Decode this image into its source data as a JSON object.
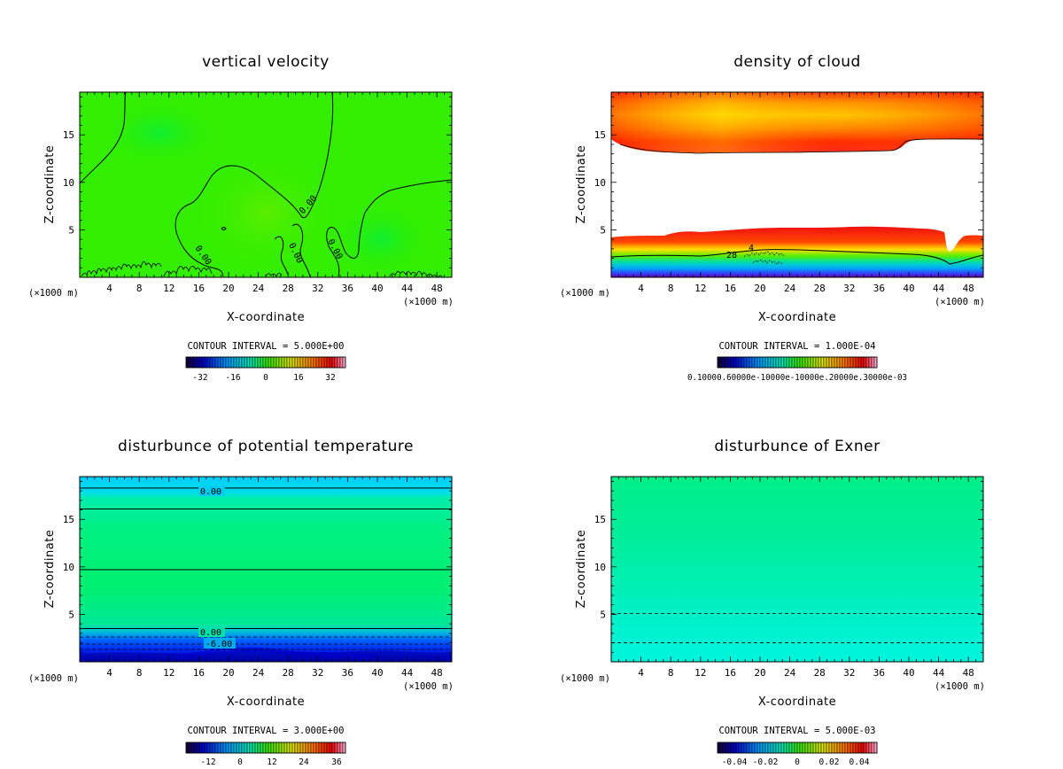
{
  "chart_data": [
    {
      "type": "heatmap",
      "title": "vertical velocity",
      "xlabel": "X-coordinate",
      "ylabel": "Z-coordinate",
      "x_unit_left": "(×1000 m)",
      "x_unit_right": "(×1000 m)",
      "xlim": [
        0,
        50
      ],
      "ylim": [
        0,
        19.5
      ],
      "xticks": [
        4,
        8,
        12,
        16,
        20,
        24,
        28,
        32,
        36,
        40,
        44,
        48
      ],
      "yticks": [
        5,
        10,
        15
      ],
      "contour_interval": "CONTOUR INTERVAL = 5.000E+00",
      "colorbar_ticks": [
        "-32",
        "-16",
        "0",
        "16",
        "32"
      ],
      "colorbar_range": [
        -40,
        40
      ],
      "contour_labels": [
        "0.00",
        "0.00",
        "0.00",
        "0.00"
      ],
      "background_color": "#33ee00"
    },
    {
      "type": "heatmap",
      "title": "density of cloud",
      "xlabel": "X-coordinate",
      "ylabel": "Z-coordinate",
      "x_unit_left": "(×1000 m)",
      "x_unit_right": "(×1000 m)",
      "xlim": [
        0,
        50
      ],
      "ylim": [
        0,
        19.5
      ],
      "xticks": [
        4,
        8,
        12,
        16,
        20,
        24,
        28,
        32,
        36,
        40,
        44,
        48
      ],
      "yticks": [
        5,
        10,
        15
      ],
      "contour_interval": "CONTOUR INTERVAL = 1.000E-04",
      "colorbar_ticks_text": "0.10000.60000e-10000e-10000e.20000e.30000e-03",
      "contour_labels": [
        "28",
        "4"
      ]
    },
    {
      "type": "heatmap",
      "title": "disturbunce of potential temperature",
      "xlabel": "X-coordinate",
      "ylabel": "Z-coordinate",
      "x_unit_left": "(×1000 m)",
      "x_unit_right": "(×1000 m)",
      "xlim": [
        0,
        50
      ],
      "ylim": [
        0,
        19.5
      ],
      "xticks": [
        4,
        8,
        12,
        16,
        20,
        24,
        28,
        32,
        36,
        40,
        44,
        48
      ],
      "yticks": [
        5,
        10,
        15
      ],
      "contour_interval": "CONTOUR INTERVAL = 3.000E+00",
      "colorbar_ticks": [
        "-12",
        "0",
        "12",
        "24",
        "36"
      ],
      "contour_levels_z": [
        18.3,
        16.1,
        9.7,
        3.5
      ],
      "contour_labels": [
        "0.00",
        "0.00",
        "-6.00"
      ]
    },
    {
      "type": "heatmap",
      "title": "disturbunce of Exner",
      "xlabel": "X-coordinate",
      "ylabel": "Z-coordinate",
      "x_unit_left": "(×1000 m)",
      "x_unit_right": "(×1000 m)",
      "xlim": [
        0,
        50
      ],
      "ylim": [
        0,
        19.5
      ],
      "xticks": [
        4,
        8,
        12,
        16,
        20,
        24,
        28,
        32,
        36,
        40,
        44,
        48
      ],
      "yticks": [
        5,
        10,
        15
      ],
      "contour_interval": "CONTOUR INTERVAL = 5.000E-03",
      "colorbar_ticks": [
        "-0.04",
        "-0.02",
        "0",
        "0.02",
        "0.04"
      ],
      "dashed_contours_z": [
        5.1,
        2.0
      ]
    }
  ]
}
